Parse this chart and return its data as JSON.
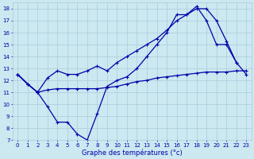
{
  "xlabel": "Graphe des températures (°c)",
  "bg_color": "#cce8f0",
  "grid_color": "#aaccdd",
  "line_color": "#0000aa",
  "xlim": [
    -0.5,
    23.5
  ],
  "ylim": [
    7,
    18.5
  ],
  "xticks": [
    0,
    1,
    2,
    3,
    4,
    5,
    6,
    7,
    8,
    9,
    10,
    11,
    12,
    13,
    14,
    15,
    16,
    17,
    18,
    19,
    20,
    21,
    22,
    23
  ],
  "yticks": [
    7,
    8,
    9,
    10,
    11,
    12,
    13,
    14,
    15,
    16,
    17,
    18
  ],
  "line1_x": [
    0,
    1,
    2,
    3,
    4,
    5,
    6,
    7,
    8,
    9,
    10,
    11,
    12,
    13,
    14,
    15,
    16,
    17,
    18,
    19,
    20,
    21,
    22
  ],
  "line1_y": [
    12.5,
    11.7,
    11.0,
    9.8,
    8.5,
    8.5,
    7.5,
    7.0,
    9.2,
    11.5,
    12.0,
    12.3,
    13.0,
    14.0,
    15.0,
    16.0,
    17.5,
    17.5,
    18.0,
    18.0,
    17.0,
    15.3,
    13.5
  ],
  "line2_x": [
    0,
    1,
    2,
    3,
    4,
    5,
    6,
    7,
    8,
    9,
    10,
    11,
    12,
    13,
    14,
    15,
    16,
    17,
    18,
    19,
    20,
    21,
    22,
    23
  ],
  "line2_y": [
    12.5,
    11.7,
    11.0,
    12.2,
    12.8,
    12.5,
    12.5,
    12.8,
    13.2,
    12.8,
    13.5,
    14.0,
    14.5,
    15.0,
    15.5,
    16.2,
    17.0,
    17.5,
    18.2,
    17.0,
    15.0,
    15.0,
    13.5,
    12.5
  ],
  "line3_x": [
    0,
    1,
    2,
    3,
    4,
    5,
    6,
    7,
    8,
    9,
    10,
    11,
    12,
    13,
    14,
    15,
    16,
    17,
    18,
    19,
    20,
    21,
    22,
    23
  ],
  "line3_y": [
    12.5,
    11.7,
    11.0,
    11.2,
    11.3,
    11.3,
    11.3,
    11.3,
    11.3,
    11.4,
    11.5,
    11.7,
    11.9,
    12.0,
    12.2,
    12.3,
    12.4,
    12.5,
    12.6,
    12.7,
    12.7,
    12.7,
    12.8,
    12.8
  ],
  "xlabel_fontsize": 6,
  "tick_fontsize": 5,
  "linewidth": 0.9,
  "markersize": 2.5,
  "markeredgewidth": 0.8
}
